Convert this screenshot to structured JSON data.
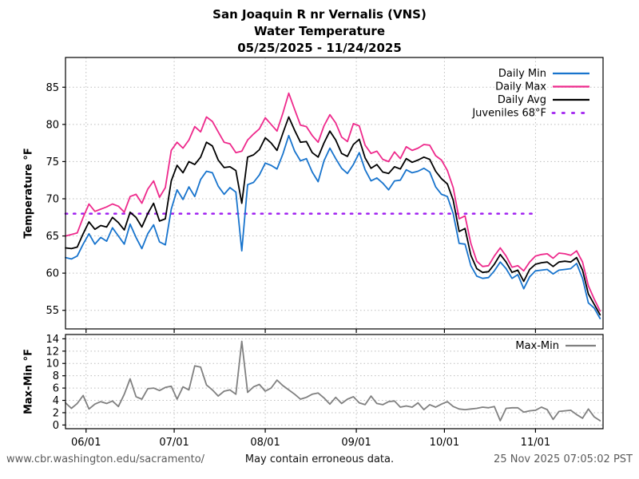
{
  "title": {
    "line1": "San Joaquin R nr Vernalis (VNS)",
    "line2": "Water Temperature",
    "line3": "05/25/2025 - 11/24/2025"
  },
  "footer": {
    "left": "www.cbr.washington.edu/sacramento/",
    "center": "May contain erroneous data.",
    "right": "25 Nov 2025 07:05:02 PST"
  },
  "colors": {
    "daily_min": "#1874cd",
    "daily_max": "#ee2a8c",
    "daily_avg": "#000000",
    "juveniles": "#a020f0",
    "max_min": "#808080",
    "grid": "#bdbdbd",
    "axis": "#000000",
    "footer_gray": "#5a5a5a"
  },
  "chart_data": [
    {
      "type": "line",
      "ylabel": "Temperature °F",
      "ylim": [
        52.5,
        89.0
      ],
      "yticks": [
        55,
        60,
        65,
        70,
        75,
        80,
        85
      ],
      "x_start_date": "05/25/2025",
      "x_end_date": "11/24/2025",
      "x_total_days": 183,
      "x_step_days": 2,
      "x_tick_days": [
        7,
        37,
        68,
        99,
        129,
        160
      ],
      "x_tick_labels": [
        "06/01",
        "07/01",
        "08/01",
        "09/01",
        "10/01",
        "11/01"
      ],
      "grid": true,
      "legend_position": "upper right",
      "threshold": {
        "label": "Juveniles 68°F",
        "value": 68,
        "start_day": 0,
        "end_day": 160
      },
      "series": [
        {
          "name": "Daily Min",
          "color_key": "daily_min",
          "values": [
            62.1,
            61.9,
            62.3,
            63.9,
            65.3,
            63.9,
            64.8,
            64.3,
            66.1,
            65.0,
            63.9,
            66.6,
            64.8,
            63.3,
            65.3,
            66.5,
            64.2,
            63.8,
            68.6,
            71.2,
            69.9,
            71.6,
            70.3,
            72.6,
            73.7,
            73.5,
            71.7,
            70.6,
            71.5,
            70.9,
            63.0,
            71.9,
            72.2,
            73.2,
            74.8,
            74.5,
            74.0,
            76.0,
            78.5,
            76.4,
            75.1,
            75.4,
            73.6,
            72.3,
            75.1,
            76.8,
            75.4,
            74.1,
            73.4,
            74.6,
            76.2,
            73.9,
            72.4,
            72.8,
            72.1,
            71.2,
            72.4,
            72.5,
            73.9,
            73.5,
            73.7,
            74.1,
            73.6,
            71.6,
            70.6,
            70.3,
            68.0,
            64.0,
            63.9,
            61.0,
            59.6,
            59.3,
            59.4,
            60.3,
            61.5,
            60.6,
            59.3,
            59.8,
            57.9,
            59.5,
            60.3,
            60.4,
            60.5,
            59.9,
            60.4,
            60.5,
            60.6,
            61.3,
            59.3,
            56.0,
            55.3,
            53.9
          ]
        },
        {
          "name": "Daily Max",
          "color_key": "daily_max",
          "values": [
            65.0,
            65.2,
            65.4,
            67.5,
            69.3,
            68.3,
            68.6,
            68.9,
            69.3,
            69.0,
            68.2,
            70.3,
            70.6,
            69.4,
            71.3,
            72.4,
            70.2,
            71.5,
            76.5,
            77.6,
            76.8,
            77.9,
            79.7,
            79.0,
            81.0,
            80.4,
            79.0,
            77.6,
            77.4,
            76.2,
            76.4,
            77.9,
            78.7,
            79.4,
            80.9,
            80.0,
            79.1,
            81.5,
            84.2,
            82.0,
            79.9,
            79.7,
            78.5,
            77.6,
            79.8,
            81.3,
            80.2,
            78.3,
            77.7,
            80.1,
            79.8,
            77.2,
            76.1,
            76.4,
            75.3,
            75.0,
            76.3,
            75.4,
            77.0,
            76.5,
            76.8,
            77.3,
            77.2,
            75.8,
            75.2,
            73.8,
            71.5,
            67.3,
            67.7,
            64.0,
            61.6,
            60.9,
            61.0,
            62.3,
            63.4,
            62.3,
            60.8,
            61.0,
            60.3,
            61.5,
            62.3,
            62.5,
            62.6,
            62.0,
            62.7,
            62.6,
            62.4,
            63.0,
            61.5,
            58.3,
            56.5,
            54.9
          ]
        },
        {
          "name": "Daily Avg",
          "color_key": "daily_avg",
          "values": [
            63.4,
            63.3,
            63.5,
            65.3,
            66.9,
            65.9,
            66.4,
            66.2,
            67.5,
            66.8,
            65.8,
            68.2,
            67.5,
            66.2,
            68.0,
            69.4,
            67.0,
            67.3,
            72.4,
            74.5,
            73.5,
            75.0,
            74.6,
            75.6,
            77.6,
            77.1,
            75.2,
            74.2,
            74.3,
            73.8,
            69.4,
            75.6,
            75.9,
            76.6,
            78.2,
            77.5,
            76.5,
            78.8,
            81.0,
            79.2,
            77.6,
            77.7,
            76.2,
            75.6,
            77.5,
            79.1,
            77.9,
            76.1,
            75.7,
            77.3,
            78.0,
            75.5,
            74.1,
            74.6,
            73.6,
            73.4,
            74.3,
            74.0,
            75.4,
            74.9,
            75.2,
            75.6,
            75.3,
            73.7,
            72.7,
            72.0,
            69.8,
            65.6,
            66.0,
            62.4,
            60.6,
            60.1,
            60.2,
            61.2,
            62.5,
            61.5,
            60.1,
            60.4,
            58.9,
            60.5,
            61.2,
            61.4,
            61.5,
            60.9,
            61.5,
            61.6,
            61.5,
            62.1,
            60.4,
            57.2,
            55.8,
            54.4
          ]
        }
      ],
      "legend": [
        "Daily Min",
        "Daily Max",
        "Daily Avg",
        "Juveniles 68°F"
      ]
    },
    {
      "type": "line",
      "ylabel": "Max-Min °F",
      "ylim": [
        -0.6,
        14.7
      ],
      "yticks": [
        0,
        2,
        4,
        6,
        8,
        10,
        12,
        14
      ],
      "x_start_date": "05/25/2025",
      "x_end_date": "11/24/2025",
      "x_total_days": 183,
      "x_step_days": 2,
      "x_tick_days": [
        7,
        37,
        68,
        99,
        129,
        160
      ],
      "x_tick_labels": [
        "06/01",
        "07/01",
        "08/01",
        "09/01",
        "10/01",
        "11/01"
      ],
      "grid": true,
      "legend_position": "upper right",
      "series": [
        {
          "name": "Max-Min",
          "color_key": "max_min",
          "values": [
            3.6,
            2.7,
            3.5,
            4.8,
            2.6,
            3.4,
            3.8,
            3.5,
            3.9,
            3.0,
            5.0,
            7.5,
            4.6,
            4.2,
            5.9,
            6.0,
            5.6,
            6.1,
            6.3,
            4.2,
            6.2,
            5.7,
            9.6,
            9.4,
            6.5,
            5.7,
            4.7,
            5.5,
            5.7,
            5.0,
            13.6,
            5.3,
            6.2,
            6.6,
            5.5,
            6.0,
            7.3,
            6.4,
            5.7,
            5.0,
            4.2,
            4.5,
            5.0,
            5.2,
            4.4,
            3.4,
            4.5,
            3.5,
            4.2,
            4.6,
            3.6,
            3.3,
            4.7,
            3.5,
            3.3,
            3.8,
            3.9,
            2.9,
            3.1,
            2.9,
            3.6,
            2.5,
            3.3,
            2.9,
            3.4,
            3.8,
            3.0,
            2.6,
            2.5,
            2.6,
            2.7,
            2.9,
            2.8,
            3.0,
            0.7,
            2.7,
            2.8,
            2.8,
            2.1,
            2.3,
            2.4,
            2.9,
            2.5,
            0.9,
            2.2,
            2.3,
            2.4,
            1.7,
            1.1,
            2.6,
            1.3,
            0.7
          ]
        }
      ],
      "legend": [
        "Max-Min"
      ]
    }
  ]
}
